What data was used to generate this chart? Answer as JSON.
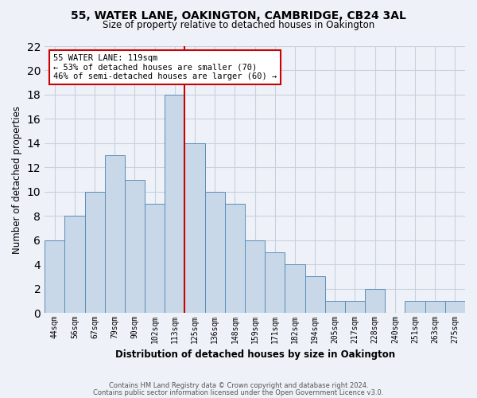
{
  "title1": "55, WATER LANE, OAKINGTON, CAMBRIDGE, CB24 3AL",
  "title2": "Size of property relative to detached houses in Oakington",
  "xlabel": "Distribution of detached houses by size in Oakington",
  "ylabel": "Number of detached properties",
  "footnote1": "Contains HM Land Registry data © Crown copyright and database right 2024.",
  "footnote2": "Contains public sector information licensed under the Open Government Licence v3.0.",
  "categories": [
    "44sqm",
    "56sqm",
    "67sqm",
    "79sqm",
    "90sqm",
    "102sqm",
    "113sqm",
    "125sqm",
    "136sqm",
    "148sqm",
    "159sqm",
    "171sqm",
    "182sqm",
    "194sqm",
    "205sqm",
    "217sqm",
    "228sqm",
    "240sqm",
    "251sqm",
    "263sqm",
    "275sqm"
  ],
  "values": [
    6,
    8,
    10,
    13,
    11,
    9,
    18,
    14,
    10,
    9,
    6,
    5,
    4,
    3,
    1,
    1,
    2,
    0,
    1,
    1,
    1
  ],
  "bar_color": "#c8d8e8",
  "bar_edge_color": "#5b8db8",
  "grid_color": "#c8d0dc",
  "background_color": "#eef2f8",
  "annotation_box_color": "#ffffff",
  "annotation_border_color": "#cc0000",
  "red_line_x": 6.5,
  "red_line_color": "#cc0000",
  "annotation_text1": "55 WATER LANE: 119sqm",
  "annotation_text2": "← 53% of detached houses are smaller (70)",
  "annotation_text3": "46% of semi-detached houses are larger (60) →",
  "ylim": [
    0,
    22
  ],
  "yticks": [
    0,
    2,
    4,
    6,
    8,
    10,
    12,
    14,
    16,
    18,
    20,
    22
  ]
}
